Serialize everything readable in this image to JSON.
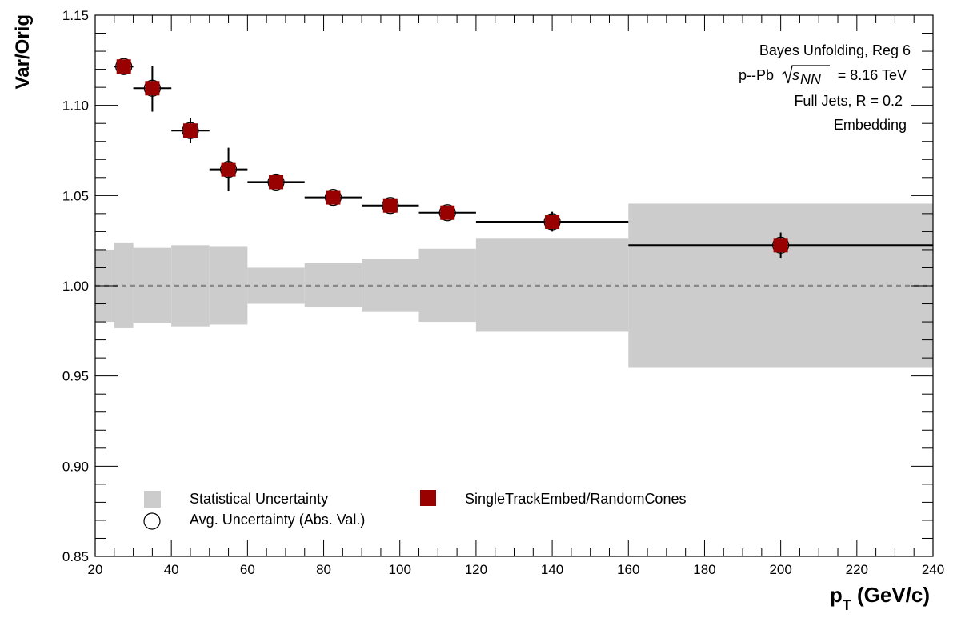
{
  "chart_data": {
    "type": "scatter",
    "xlabel": "p",
    "xlabel_sub": "T",
    "xlabel_unit": " (GeV/c)",
    "ylabel": "Var/Orig",
    "xlim": [
      20,
      240
    ],
    "ylim": [
      0.85,
      1.15
    ],
    "x_ticks": [
      "20",
      "40",
      "60",
      "80",
      "100",
      "120",
      "140",
      "160",
      "180",
      "200",
      "220",
      "240"
    ],
    "y_ticks": [
      "0.85",
      "0.90",
      "0.95",
      "1.00",
      "1.05",
      "1.10",
      "1.15"
    ],
    "reference_line": 1.0,
    "annotations": {
      "line1": "Bayes Unfolding, Reg 6",
      "line2_prefix": "p--Pb",
      "line2_sqrt_s": "s",
      "line2_sub": "NN",
      "line2_suffix": "= 8.16 TeV",
      "line3": "Full Jets, R = 0.2",
      "line4": "Embedding"
    },
    "statistical_band": {
      "name": "Statistical Uncertainty",
      "color": "#cccccc",
      "bins": [
        {
          "x0": 20,
          "x1": 25,
          "lo": 0.98,
          "hi": 1.02
        },
        {
          "x0": 25,
          "x1": 30,
          "lo": 0.9765,
          "hi": 1.024
        },
        {
          "x0": 30,
          "x1": 40,
          "lo": 0.9795,
          "hi": 1.021
        },
        {
          "x0": 40,
          "x1": 50,
          "lo": 0.9775,
          "hi": 1.0225
        },
        {
          "x0": 50,
          "x1": 60,
          "lo": 0.9785,
          "hi": 1.022
        },
        {
          "x0": 60,
          "x1": 75,
          "lo": 0.99,
          "hi": 1.01
        },
        {
          "x0": 75,
          "x1": 90,
          "lo": 0.988,
          "hi": 1.0125
        },
        {
          "x0": 90,
          "x1": 105,
          "lo": 0.9855,
          "hi": 1.015
        },
        {
          "x0": 105,
          "x1": 120,
          "lo": 0.98,
          "hi": 1.0205
        },
        {
          "x0": 120,
          "x1": 160,
          "lo": 0.9745,
          "hi": 1.0265
        },
        {
          "x0": 160,
          "x1": 240,
          "lo": 0.9545,
          "hi": 1.0455
        }
      ]
    },
    "series": [
      {
        "name": "SingleTrackEmbed/RandomCones",
        "color": "#990000",
        "marker": "square",
        "points": [
          {
            "x": 27.5,
            "y": 1.1215,
            "xlo": 25,
            "xhi": 30,
            "ylo": 1.12,
            "yhi": 1.1235
          },
          {
            "x": 35,
            "y": 1.1095,
            "xlo": 30,
            "xhi": 40,
            "ylo": 1.0965,
            "yhi": 1.122
          },
          {
            "x": 45,
            "y": 1.086,
            "xlo": 40,
            "xhi": 50,
            "ylo": 1.079,
            "yhi": 1.093
          },
          {
            "x": 55,
            "y": 1.0645,
            "xlo": 50,
            "xhi": 60,
            "ylo": 1.0525,
            "yhi": 1.0765
          },
          {
            "x": 67.5,
            "y": 1.0575,
            "xlo": 60,
            "xhi": 75,
            "ylo": 1.055,
            "yhi": 1.06
          },
          {
            "x": 82.5,
            "y": 1.049,
            "xlo": 75,
            "xhi": 90,
            "ylo": 1.047,
            "yhi": 1.051
          },
          {
            "x": 97.5,
            "y": 1.0445,
            "xlo": 90,
            "xhi": 105,
            "ylo": 1.0425,
            "yhi": 1.0465
          },
          {
            "x": 112.5,
            "y": 1.0405,
            "xlo": 105,
            "xhi": 120,
            "ylo": 1.0385,
            "yhi": 1.0425
          },
          {
            "x": 140,
            "y": 1.0355,
            "xlo": 120,
            "xhi": 160,
            "ylo": 1.03,
            "yhi": 1.041
          },
          {
            "x": 200,
            "y": 1.0225,
            "xlo": 160,
            "xhi": 240,
            "ylo": 1.0155,
            "yhi": 1.0295
          }
        ]
      }
    ],
    "legend": {
      "placement": "bottom-left",
      "entries": [
        {
          "symbol": "filled-box",
          "color": "#cccccc",
          "label": "Statistical Uncertainty"
        },
        {
          "symbol": "open-circle",
          "label": "Avg. Uncertainty (Abs. Val.)"
        },
        {
          "symbol": "filled-square",
          "color": "#990000",
          "label": "SingleTrackEmbed/RandomCones"
        }
      ]
    }
  }
}
